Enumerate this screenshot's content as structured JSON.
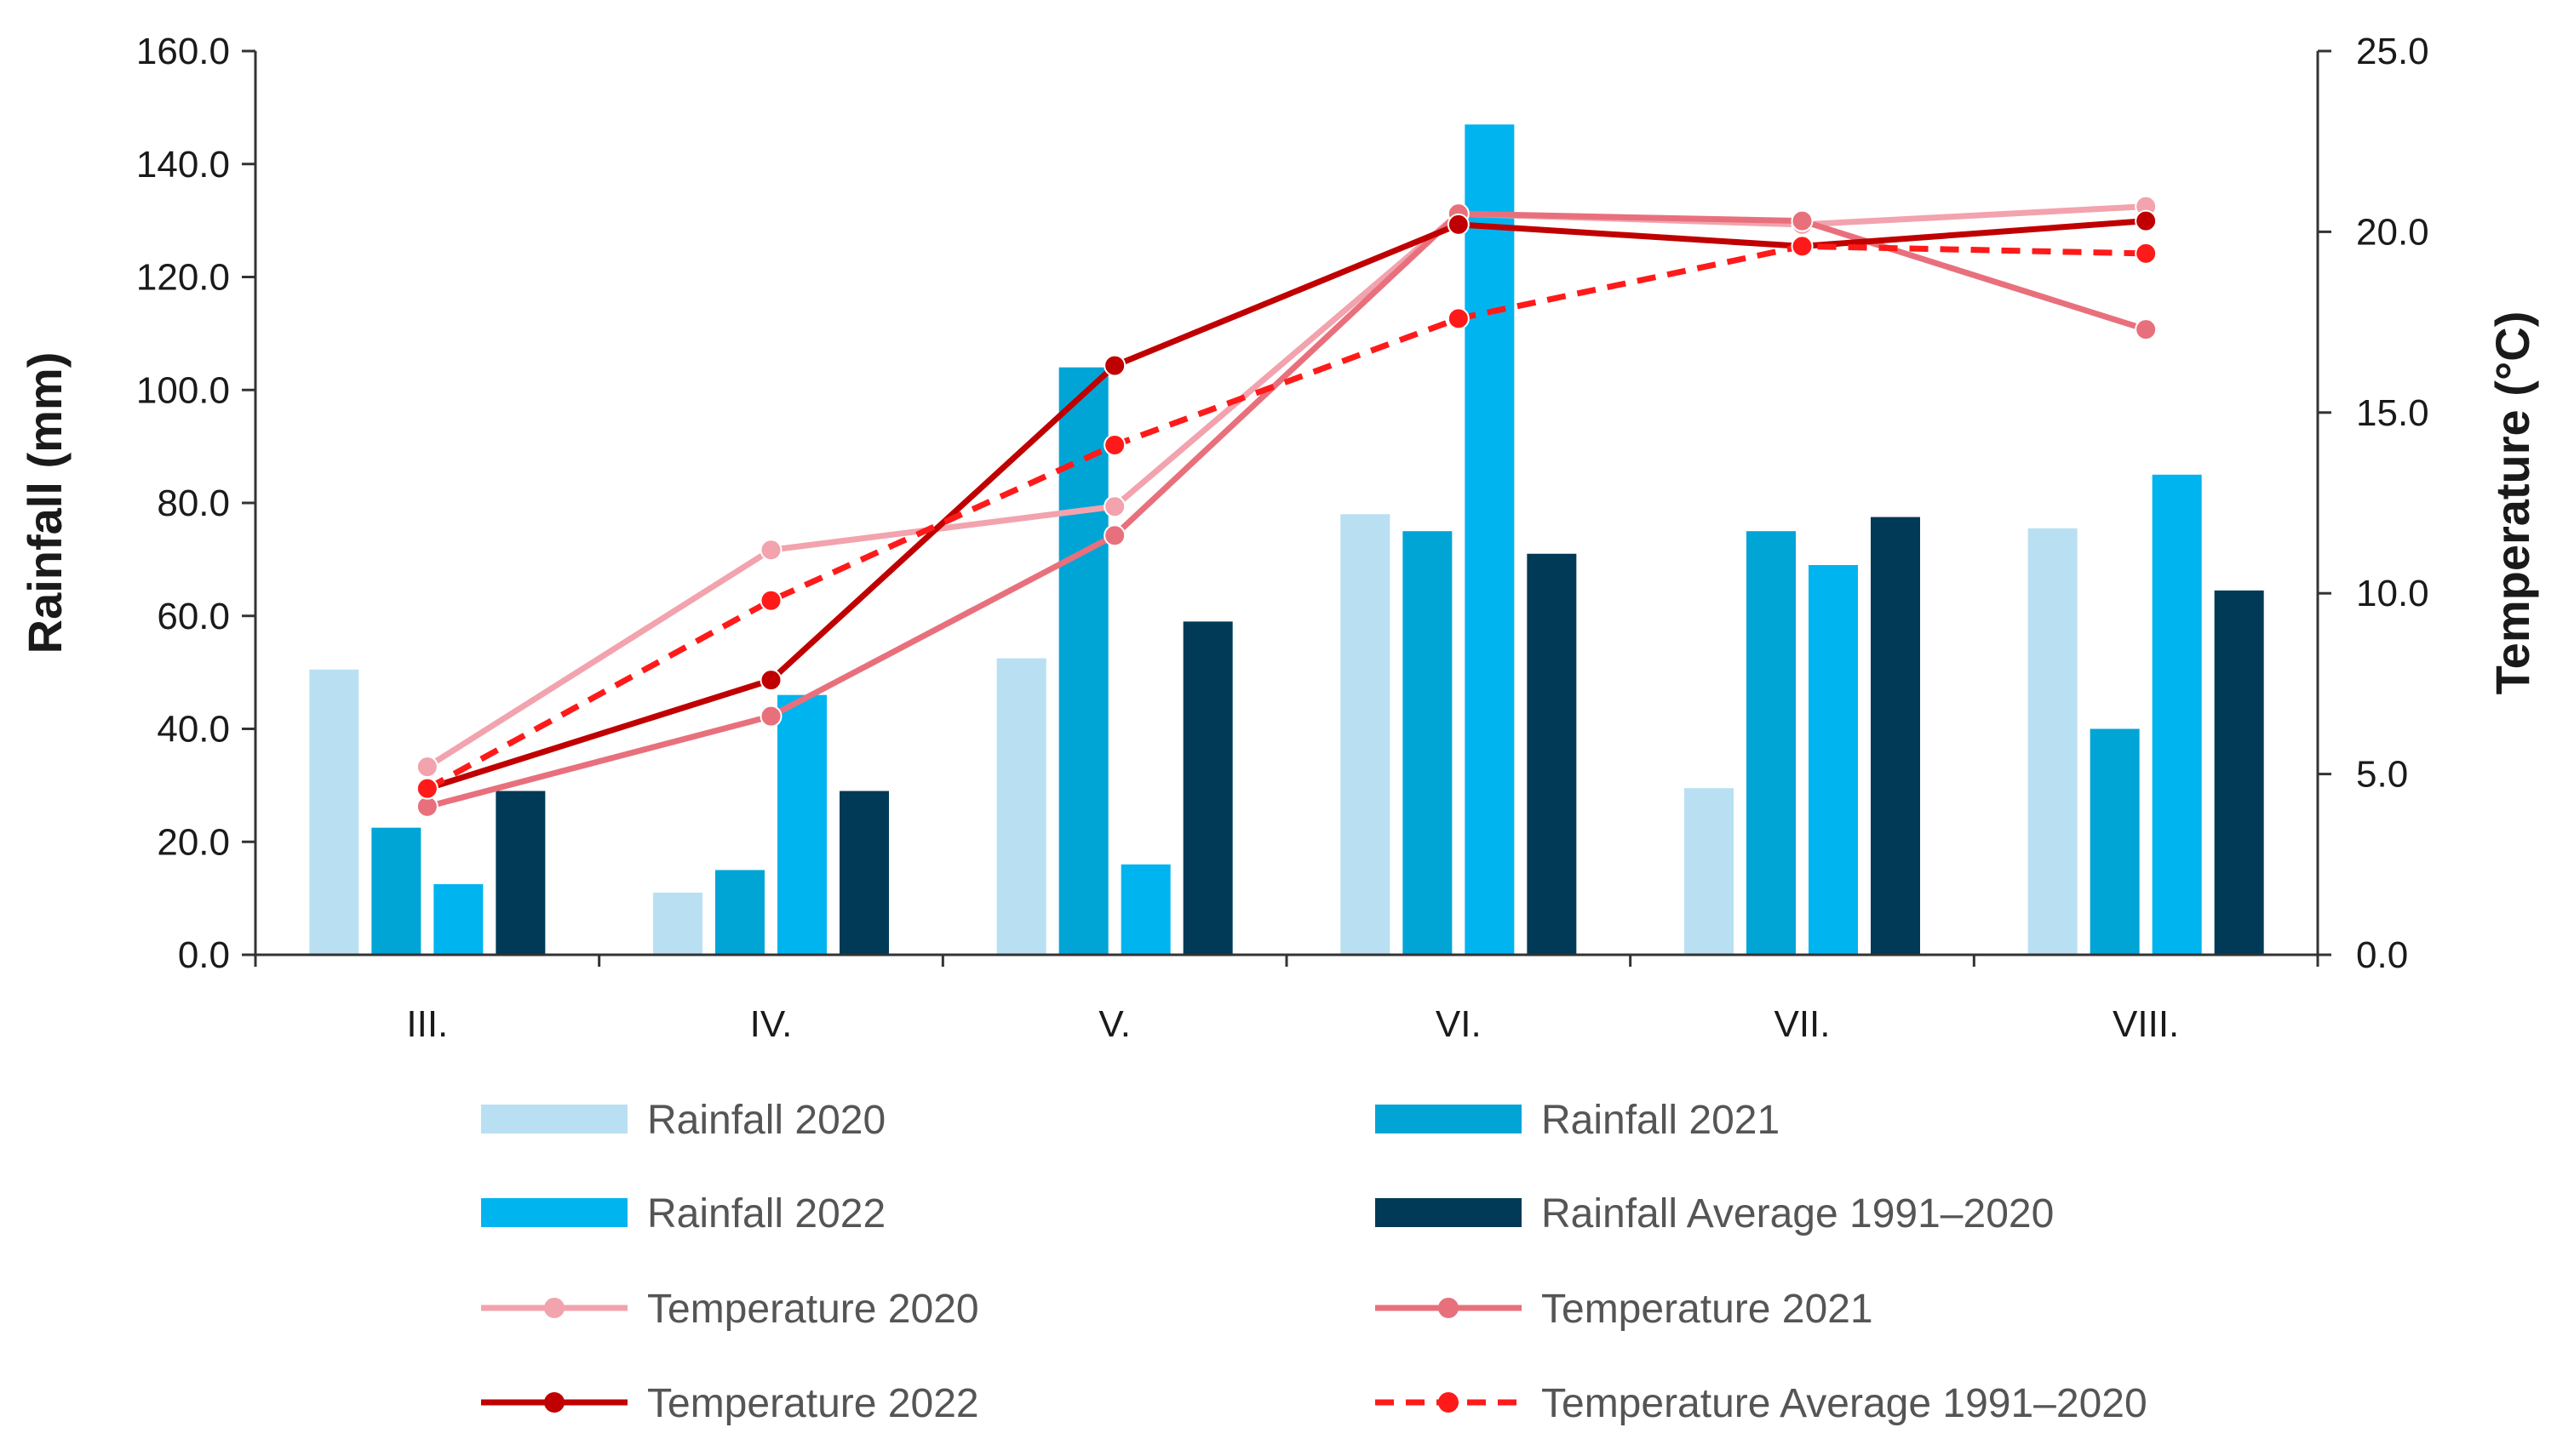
{
  "chart_data": {
    "type": "bar",
    "categories": [
      "III.",
      "IV.",
      "V.",
      "VI.",
      "VII.",
      "VIII."
    ],
    "y_left": {
      "label": "Rainfall (mm)",
      "range": [
        0,
        160
      ],
      "ticks": [
        "0.0",
        "20.0",
        "40.0",
        "60.0",
        "80.0",
        "100.0",
        "120.0",
        "140.0",
        "160.0"
      ]
    },
    "y_right": {
      "label": "Temperature (°C)",
      "range": [
        0,
        25
      ],
      "ticks": [
        "0.0",
        "5.0",
        "10.0",
        "15.0",
        "20.0",
        "25.0"
      ]
    },
    "grid": false,
    "legend_position": "bottom",
    "bar_series": [
      {
        "name": "Rainfall 2020",
        "color": "#b9e0f2",
        "values": [
          50.5,
          11.0,
          52.5,
          78.0,
          29.5,
          75.5
        ]
      },
      {
        "name": "Rainfall 2021",
        "color": "#00a5d6",
        "values": [
          22.5,
          15.0,
          104.0,
          75.0,
          75.0,
          40.0
        ]
      },
      {
        "name": "Rainfall 2022",
        "color": "#00b4ef",
        "values": [
          12.5,
          46.0,
          16.0,
          147.0,
          69.0,
          85.0
        ]
      },
      {
        "name": "Rainfall Average 1991–2020",
        "color": "#003a57",
        "values": [
          29.0,
          29.0,
          59.0,
          71.0,
          77.5,
          64.5
        ]
      }
    ],
    "line_series": [
      {
        "name": "Temperature 2020",
        "color": "#f2a3ad",
        "dashed": false,
        "values": [
          5.2,
          11.2,
          12.4,
          20.5,
          20.2,
          20.7
        ]
      },
      {
        "name": "Temperature 2021",
        "color": "#e8707c",
        "dashed": false,
        "values": [
          4.1,
          6.6,
          11.6,
          20.5,
          20.3,
          17.3
        ]
      },
      {
        "name": "Temperature 2022",
        "color": "#c00000",
        "dashed": false,
        "values": [
          4.6,
          7.6,
          16.3,
          20.2,
          19.6,
          20.3
        ]
      },
      {
        "name": "Temperature Average 1991–2020",
        "color": "#ff1a1a",
        "dashed": true,
        "values": [
          4.6,
          9.8,
          14.1,
          17.6,
          19.6,
          19.4
        ]
      }
    ]
  }
}
